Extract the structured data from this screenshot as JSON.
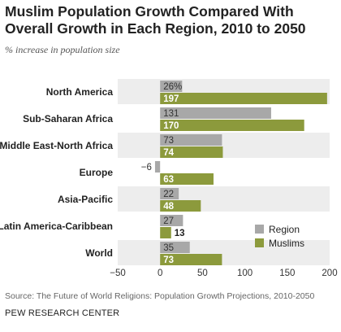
{
  "title": "Muslim Population Growth Compared With Overall Growth in Each Region, 2010 to 2050",
  "subtitle": "% increase in population size",
  "source": "Source: The Future of World Religions: Population Growth Projections, 2010-2050",
  "footer": "PEW RESEARCH CENTER",
  "colors": {
    "region": "#a8a8a8",
    "muslims": "#8c9a3c",
    "band": "#ededed"
  },
  "chart_data": {
    "type": "bar",
    "orientation": "horizontal",
    "categories": [
      "North America",
      "Sub-Saharan Africa",
      "Middle East-North Africa",
      "Europe",
      "Asia-Pacific",
      "Latin America-Caribbean",
      "World"
    ],
    "series": [
      {
        "name": "Region",
        "values": [
          26,
          131,
          73,
          -6,
          22,
          27,
          35
        ],
        "labels": [
          "26%",
          "131",
          "73",
          "-6",
          "22",
          "27",
          "35"
        ]
      },
      {
        "name": "Muslims",
        "values": [
          197,
          170,
          74,
          63,
          48,
          13,
          73
        ],
        "labels": [
          "197",
          "170",
          "74",
          "63",
          "48",
          "13",
          "73"
        ]
      }
    ],
    "xlim": [
      -50,
      200
    ],
    "xticks": [
      -50,
      0,
      50,
      100,
      150,
      200
    ],
    "xtick_labels": [
      "-50",
      "0",
      "50",
      "100",
      "150",
      "200"
    ],
    "legend_position": "bottom-right",
    "grid": false
  }
}
